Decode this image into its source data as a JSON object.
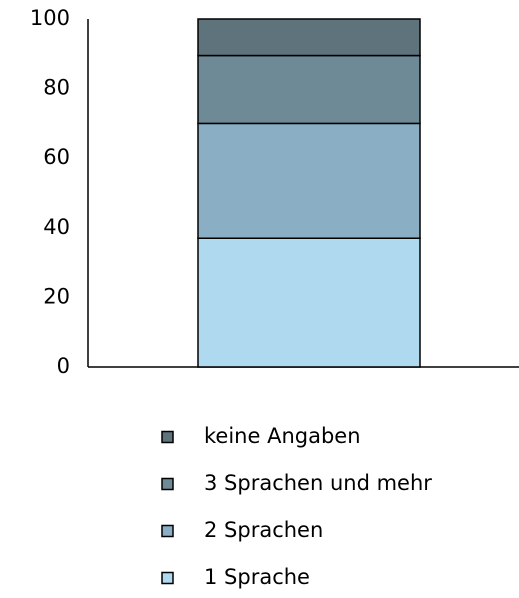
{
  "chart_data": {
    "type": "stacked_bar",
    "categories": [
      null
    ],
    "series": [
      {
        "name": "1 Sprache",
        "color": "#aed9ef",
        "values": [
          37
        ]
      },
      {
        "name": "2 Sprachen",
        "color": "#8aafc4",
        "values": [
          33
        ]
      },
      {
        "name": "3 Sprachen und mehr",
        "color": "#6e8a96",
        "values": [
          19.5
        ]
      },
      {
        "name": "keine Angaben",
        "color": "#5f737c",
        "values": [
          10.5
        ]
      }
    ],
    "ylim": [
      0,
      100
    ],
    "yticks": [
      0,
      20,
      40,
      60,
      80,
      100
    ],
    "grid": false,
    "legend": "bottom"
  }
}
